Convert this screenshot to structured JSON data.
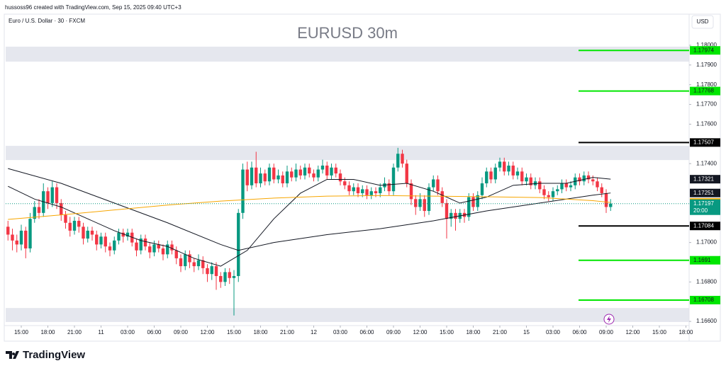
{
  "header": {
    "author_line": "hussoss96 created with TradingView.com, Sep 15, 2025 09:40 UTC+3",
    "symbol": "Euro / U.S. Dollar · 30 · FXCM",
    "currency": "USD",
    "countdown": "20:00",
    "brand": "TradingView"
  },
  "chart_data": {
    "type": "candlestick",
    "title": "EURUSD 30m",
    "up_color": "#089981",
    "down_color": "#f23645",
    "open": [
      1.1708,
      1.1704,
      1.1701,
      1.1699,
      1.1706,
      1.1697,
      1.1712,
      1.1718,
      1.1715,
      1.1726,
      1.172,
      1.1728,
      1.172,
      1.1714,
      1.171,
      1.1706,
      1.1711,
      1.1708,
      1.1702,
      1.1706,
      1.1704,
      1.1699,
      1.1703,
      1.1698,
      1.1696,
      1.1701,
      1.1705,
      1.1703,
      1.1705,
      1.17,
      1.1696,
      1.1702,
      1.1698,
      1.1695,
      1.1699,
      1.1697,
      1.1694,
      1.1699,
      1.1696,
      1.1692,
      1.1688,
      1.1694,
      1.169,
      1.1688,
      1.1691,
      1.1687,
      1.1684,
      1.1688,
      1.1683,
      1.168,
      1.1685,
      1.1682,
      1.1683,
      1.1715,
      1.1737,
      1.1729,
      1.1738,
      1.173,
      1.1735,
      1.1731,
      1.1738,
      1.1732,
      1.1734,
      1.173,
      1.1736,
      1.1733,
      1.1737,
      1.1734,
      1.1738,
      1.1735,
      1.1733,
      1.1737,
      1.1739,
      1.1734,
      1.1738,
      1.1735,
      1.1731,
      1.1729,
      1.1726,
      1.1728,
      1.1725,
      1.1727,
      1.1724,
      1.1726,
      1.1725,
      1.1728,
      1.173,
      1.1726,
      1.1738,
      1.1745,
      1.174,
      1.173,
      1.1722,
      1.1718,
      1.1722,
      1.1716,
      1.1728,
      1.1732,
      1.1726,
      1.172,
      1.1712,
      1.1715,
      1.1712,
      1.1715,
      1.1713,
      1.1723,
      1.1718,
      1.1724,
      1.173,
      1.1736,
      1.1732,
      1.1738,
      1.1741,
      1.1736,
      1.1739,
      1.1734,
      1.1736,
      1.1731,
      1.1733,
      1.1729,
      1.1731,
      1.1727,
      1.1724,
      1.1723,
      1.1726,
      1.1727,
      1.173,
      1.1728,
      1.1729,
      1.1733,
      1.1731,
      1.1734,
      1.1732,
      1.1731,
      1.1728,
      1.1725,
      1.1718
    ],
    "high": [
      1.1711,
      1.1707,
      1.1704,
      1.1709,
      1.1708,
      1.1715,
      1.1721,
      1.1722,
      1.173,
      1.1728,
      1.1731,
      1.173,
      1.1722,
      1.1716,
      1.1713,
      1.1713,
      1.1713,
      1.171,
      1.1708,
      1.1708,
      1.1706,
      1.1705,
      1.1705,
      1.17,
      1.1703,
      1.1707,
      1.1707,
      1.1707,
      1.1707,
      1.1702,
      1.1704,
      1.1704,
      1.17,
      1.1701,
      1.1701,
      1.1699,
      1.1701,
      1.1701,
      1.1698,
      1.1694,
      1.1696,
      1.1696,
      1.1692,
      1.1694,
      1.1693,
      1.1689,
      1.169,
      1.169,
      1.1685,
      1.1687,
      1.1687,
      1.1686,
      1.1717,
      1.174,
      1.1741,
      1.1741,
      1.1746,
      1.1738,
      1.1737,
      1.174,
      1.174,
      1.1737,
      1.1736,
      1.1739,
      1.1738,
      1.174,
      1.1739,
      1.174,
      1.174,
      1.1737,
      1.1739,
      1.1742,
      1.1741,
      1.174,
      1.174,
      1.1737,
      1.1733,
      1.1731,
      1.173,
      1.173,
      1.1729,
      1.1729,
      1.1728,
      1.1728,
      1.173,
      1.1733,
      1.1732,
      1.174,
      1.1748,
      1.1747,
      1.1742,
      1.1732,
      1.1724,
      1.1725,
      1.1724,
      1.173,
      1.1734,
      1.1734,
      1.1728,
      1.1722,
      1.1717,
      1.1717,
      1.1717,
      1.1717,
      1.1725,
      1.1725,
      1.1726,
      1.1733,
      1.1738,
      1.1738,
      1.174,
      1.1743,
      1.1743,
      1.1741,
      1.1741,
      1.1738,
      1.1738,
      1.1735,
      1.1735,
      1.1733,
      1.1733,
      1.1729,
      1.1726,
      1.1728,
      1.1729,
      1.1732,
      1.1732,
      1.1731,
      1.1735,
      1.1735,
      1.1736,
      1.1736,
      1.1734,
      1.1733,
      1.173,
      1.1727,
      1.1722
    ],
    "low": [
      1.1701,
      1.1696,
      1.1695,
      1.1696,
      1.1692,
      1.1695,
      1.171,
      1.1712,
      1.1713,
      1.1717,
      1.1718,
      1.1717,
      1.1711,
      1.1707,
      1.1703,
      1.1704,
      1.1705,
      1.1699,
      1.17,
      1.1701,
      1.1696,
      1.1697,
      1.1695,
      1.1693,
      1.1694,
      1.1699,
      1.17,
      1.1701,
      1.1698,
      1.1693,
      1.1694,
      1.1696,
      1.1692,
      1.1693,
      1.1695,
      1.1691,
      1.1692,
      1.1694,
      1.1689,
      1.1685,
      1.1686,
      1.1687,
      1.1685,
      1.1686,
      1.1684,
      1.168,
      1.1681,
      1.1676,
      1.1677,
      1.1678,
      1.1679,
      1.1663,
      1.168,
      1.1712,
      1.1726,
      1.1727,
      1.1728,
      1.1728,
      1.1729,
      1.1729,
      1.173,
      1.173,
      1.1728,
      1.1728,
      1.1731,
      1.1731,
      1.1732,
      1.1732,
      1.1733,
      1.1731,
      1.1731,
      1.1735,
      1.1732,
      1.1732,
      1.1733,
      1.1729,
      1.1727,
      1.1724,
      1.1724,
      1.1723,
      1.1723,
      1.1722,
      1.1722,
      1.1723,
      1.1723,
      1.1726,
      1.1724,
      1.1724,
      1.1736,
      1.1738,
      1.1728,
      1.1719,
      1.1714,
      1.1716,
      1.1713,
      1.1714,
      1.1726,
      1.1724,
      1.1718,
      1.1702,
      1.1708,
      1.1706,
      1.171,
      1.171,
      1.1711,
      1.1716,
      1.1716,
      1.1722,
      1.1728,
      1.173,
      1.173,
      1.1736,
      1.1734,
      1.1734,
      1.1732,
      1.1732,
      1.1729,
      1.1729,
      1.1727,
      1.1727,
      1.1725,
      1.1722,
      1.1721,
      1.1721,
      1.1724,
      1.1725,
      1.1726,
      1.1726,
      1.1727,
      1.1729,
      1.1729,
      1.173,
      1.1729,
      1.1726,
      1.1723,
      1.1715,
      1.1716
    ],
    "close": [
      1.1704,
      1.1701,
      1.1699,
      1.1706,
      1.1697,
      1.1712,
      1.1718,
      1.1715,
      1.1726,
      1.172,
      1.1728,
      1.172,
      1.1714,
      1.171,
      1.1706,
      1.1711,
      1.1708,
      1.1702,
      1.1706,
      1.1704,
      1.1699,
      1.1703,
      1.1698,
      1.1696,
      1.1701,
      1.1705,
      1.1703,
      1.1705,
      1.17,
      1.1696,
      1.1702,
      1.1698,
      1.1695,
      1.1699,
      1.1697,
      1.1694,
      1.1699,
      1.1696,
      1.1692,
      1.1688,
      1.1694,
      1.169,
      1.1688,
      1.1691,
      1.1687,
      1.1684,
      1.1688,
      1.1683,
      1.168,
      1.1685,
      1.1682,
      1.1683,
      1.1715,
      1.1737,
      1.1729,
      1.1738,
      1.173,
      1.1735,
      1.1731,
      1.1738,
      1.1732,
      1.1734,
      1.173,
      1.1736,
      1.1733,
      1.1737,
      1.1734,
      1.1738,
      1.1735,
      1.1733,
      1.1737,
      1.1739,
      1.1734,
      1.1738,
      1.1735,
      1.1731,
      1.1729,
      1.1726,
      1.1728,
      1.1725,
      1.1727,
      1.1724,
      1.1726,
      1.1725,
      1.1728,
      1.173,
      1.1726,
      1.1738,
      1.1745,
      1.174,
      1.173,
      1.1722,
      1.1718,
      1.1722,
      1.1716,
      1.1728,
      1.1732,
      1.1726,
      1.172,
      1.1712,
      1.1715,
      1.1712,
      1.1715,
      1.1713,
      1.1723,
      1.1718,
      1.1724,
      1.173,
      1.1736,
      1.1732,
      1.1738,
      1.1741,
      1.1736,
      1.1739,
      1.1734,
      1.1736,
      1.1731,
      1.1733,
      1.1729,
      1.1731,
      1.1727,
      1.1724,
      1.1723,
      1.1726,
      1.1727,
      1.173,
      1.1728,
      1.1729,
      1.1733,
      1.1731,
      1.1734,
      1.1732,
      1.1731,
      1.1728,
      1.1725,
      1.1718,
      1.17197
    ],
    "last_color": "#089981",
    "moving_averages": [
      {
        "color": "#131722",
        "x": [
          0,
          12,
          24,
          36,
          48,
          52,
          60,
          72,
          84,
          96,
          108,
          120,
          132,
          136
        ],
        "values": [
          1.17375,
          1.173,
          1.172,
          1.171,
          1.1699,
          1.1696,
          1.17,
          1.1704,
          1.1707,
          1.1711,
          1.1716,
          1.172,
          1.1724,
          1.17251
        ]
      },
      {
        "color": "#131722",
        "x": [
          0,
          6,
          12,
          18,
          24,
          30,
          36,
          42,
          48,
          54,
          60,
          66,
          72,
          78,
          84,
          90,
          96,
          102,
          108,
          114,
          120,
          126,
          132,
          136
        ],
        "values": [
          1.17285,
          1.1722,
          1.1718,
          1.1712,
          1.1706,
          1.1701,
          1.1698,
          1.1692,
          1.1688,
          1.1696,
          1.1712,
          1.1725,
          1.1732,
          1.1732,
          1.1729,
          1.173,
          1.1726,
          1.172,
          1.1723,
          1.1729,
          1.173,
          1.173,
          1.1733,
          1.17321
        ]
      },
      {
        "color": "#f7a600",
        "x": [
          0,
          12,
          24,
          36,
          48,
          60,
          72,
          84,
          96,
          108,
          120,
          132,
          136
        ],
        "values": [
          1.17117,
          1.1714,
          1.17165,
          1.1719,
          1.1721,
          1.17225,
          1.17235,
          1.17238,
          1.17235,
          1.17232,
          1.17228,
          1.17212,
          1.17203
        ]
      }
    ],
    "levels": [
      {
        "value": 1.17974,
        "color": "#00e600"
      },
      {
        "value": 1.17768,
        "color": "#00e600"
      },
      {
        "value": 1.17507,
        "color": "#000000"
      },
      {
        "value": 1.17084,
        "color": "#000000"
      },
      {
        "value": 1.1691,
        "color": "#00e600"
      },
      {
        "value": 1.16708,
        "color": "#00e600"
      }
    ],
    "zones": [
      [
        1.17917,
        1.17993
      ],
      [
        1.17418,
        1.1749
      ],
      [
        1.16597,
        1.16668
      ]
    ],
    "zone_color": "#e0e3eb",
    "xlim": [
      -0.52,
      153.72
    ],
    "xticks": [
      {
        "value": 3,
        "label": "15:00"
      },
      {
        "value": 9,
        "label": "18:00"
      },
      {
        "value": 15,
        "label": "21:00"
      },
      {
        "value": 21,
        "label": "11"
      },
      {
        "value": 27,
        "label": "03:00"
      },
      {
        "value": 33,
        "label": "06:00"
      },
      {
        "value": 39,
        "label": "09:00"
      },
      {
        "value": 45,
        "label": "12:00"
      },
      {
        "value": 51,
        "label": "15:00"
      },
      {
        "value": 57,
        "label": "18:00"
      },
      {
        "value": 63,
        "label": "21:00"
      },
      {
        "value": 69,
        "label": "12"
      },
      {
        "value": 75,
        "label": "03:00"
      },
      {
        "value": 81,
        "label": "06:00"
      },
      {
        "value": 87,
        "label": "09:00"
      },
      {
        "value": 93,
        "label": "12:00"
      },
      {
        "value": 99,
        "label": "15:00"
      },
      {
        "value": 105,
        "label": "18:00"
      },
      {
        "value": 111,
        "label": "21:00"
      },
      {
        "value": 117,
        "label": "15"
      },
      {
        "value": 123,
        "label": "03:00"
      },
      {
        "value": 129,
        "label": "06:00"
      },
      {
        "value": 135,
        "label": "09:00"
      },
      {
        "value": 141,
        "label": "12:00"
      },
      {
        "value": 147,
        "label": "15:00"
      },
      {
        "value": 153,
        "label": "18:00"
      }
    ],
    "ylim": [
      1.16586,
      1.18086
    ],
    "yticks": [
      {
        "value": 1.18,
        "label": "1.18000"
      },
      {
        "value": 1.179,
        "label": "1.17900"
      },
      {
        "value": 1.178,
        "label": "1.17800"
      },
      {
        "value": 1.177,
        "label": "1.17700"
      },
      {
        "value": 1.176,
        "label": "1.17600"
      },
      {
        "value": 1.174,
        "label": "1.17400"
      },
      {
        "value": 1.17,
        "label": "1.17000"
      },
      {
        "value": 1.168,
        "label": "1.16800"
      },
      {
        "value": 1.166,
        "label": "1.16600"
      }
    ]
  }
}
